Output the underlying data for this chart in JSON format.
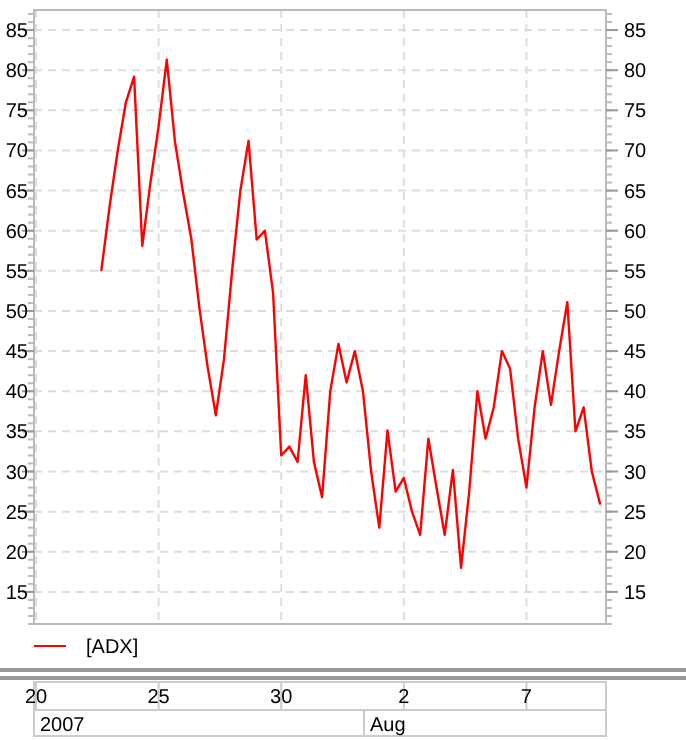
{
  "chart_data": {
    "type": "line",
    "categories": [
      "20",
      null,
      null,
      null,
      null,
      null,
      null,
      null,
      null,
      null,
      null,
      null,
      null,
      null,
      null,
      "25",
      null,
      null,
      null,
      null,
      null,
      null,
      null,
      null,
      null,
      null,
      null,
      null,
      null,
      null,
      "30",
      null,
      null,
      null,
      null,
      null,
      null,
      null,
      null,
      null,
      null,
      null,
      null,
      null,
      null,
      "2",
      null,
      null,
      null,
      null,
      null,
      null,
      null,
      null,
      null,
      null,
      null,
      null,
      null,
      null,
      "7",
      null,
      null,
      null,
      null,
      null,
      null,
      null,
      null,
      null
    ],
    "series": [
      {
        "name": "[ADX]",
        "color": "#ff0000",
        "values": [
          null,
          null,
          null,
          null,
          null,
          null,
          null,
          null,
          55.1,
          63,
          70,
          76,
          79.2,
          58.1,
          66,
          73,
          81.3,
          71.1,
          64.7,
          59,
          50.3,
          43,
          37,
          44,
          55.1,
          65,
          71.2,
          58.9,
          60,
          52.3,
          32,
          33.1,
          31.2,
          42,
          31.2,
          26.8,
          40,
          45.9,
          41.1,
          45,
          40,
          30,
          23,
          35.1,
          27.5,
          29.2,
          25,
          22.1,
          34.1,
          28,
          22.1,
          30.2,
          18,
          27.5,
          40,
          34.1,
          38,
          45,
          42.8,
          34,
          28,
          38,
          45,
          38.3,
          45,
          51.1,
          35,
          38,
          30,
          26
        ]
      }
    ],
    "ylim": [
      11,
      87.5
    ],
    "yticks": [
      15,
      20,
      25,
      30,
      35,
      40,
      45,
      50,
      55,
      60,
      65,
      70,
      75,
      80,
      85
    ],
    "y2lim": [
      11,
      87.5
    ],
    "y2ticks": [
      15,
      20,
      25,
      30,
      35,
      40,
      45,
      50,
      55,
      60,
      65,
      70,
      75,
      80,
      85
    ],
    "annotations": [
      "2007",
      "Aug"
    ],
    "grid": true,
    "legend": "bottom",
    "marker": "none",
    "line_style": "solid"
  }
}
